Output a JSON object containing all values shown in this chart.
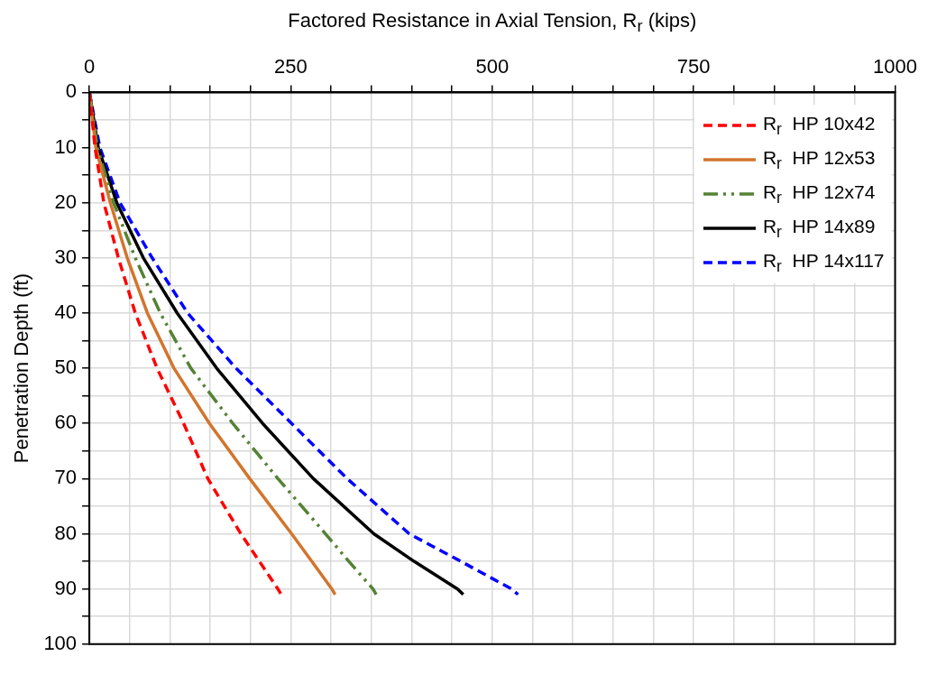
{
  "chart_data": {
    "type": "line",
    "xlabel": "Factored Resistance in Axial Tension, R$_{r}$ (kips)",
    "ylabel": "Penetration Depth (ft)",
    "xlim": [
      0,
      1000
    ],
    "xticks": [
      0,
      {
        "value": 50,
        "label": null
      },
      {
        "value": 100,
        "label": null
      },
      {
        "value": 150,
        "label": null
      },
      {
        "value": 200,
        "label": null
      },
      250,
      {
        "value": 300,
        "label": null
      },
      {
        "value": 350,
        "label": null
      },
      {
        "value": 400,
        "label": null
      },
      {
        "value": 450,
        "label": null
      },
      500,
      {
        "value": 550,
        "label": null
      },
      {
        "value": 600,
        "label": null
      },
      {
        "value": 650,
        "label": null
      },
      {
        "value": 700,
        "label": null
      },
      750,
      {
        "value": 800,
        "label": null
      },
      {
        "value": 850,
        "label": null
      },
      {
        "value": 900,
        "label": null
      },
      {
        "value": 950,
        "label": null
      },
      1000
    ],
    "ylim": [
      100,
      0
    ],
    "yticks": [
      0,
      {
        "value": 5,
        "label": null
      },
      10,
      {
        "value": 15,
        "label": null
      },
      20,
      {
        "value": 25,
        "label": null
      },
      30,
      {
        "value": 35,
        "label": null
      },
      40,
      {
        "value": 45,
        "label": null
      },
      50,
      {
        "value": 55,
        "label": null
      },
      60,
      {
        "value": 65,
        "label": null
      },
      70,
      {
        "value": 75,
        "label": null
      },
      80,
      {
        "value": 85,
        "label": null
      },
      90,
      {
        "value": 95,
        "label": null
      },
      100
    ],
    "grid": true,
    "legend": "top right",
    "marker": "none",
    "series": [
      {
        "name": "R$_{r}$  HP 10x42",
        "color": "#ff0000",
        "line_style": "dashed",
        "x": [
          0,
          7,
          18,
          36,
          57,
          84,
          117,
          147,
          188,
          211,
          234,
          238
        ],
        "values": [
          0,
          10,
          20,
          30,
          40,
          50,
          60,
          70,
          80,
          85,
          90,
          91
        ]
      },
      {
        "name": "R$_{r}$  HP 12x53",
        "color": "#d2752d",
        "line_style": "solid",
        "x": [
          0,
          8,
          26,
          47,
          72,
          105,
          149,
          199,
          251,
          276,
          301,
          305
        ],
        "values": [
          0,
          10,
          20,
          30,
          40,
          50,
          60,
          70,
          80,
          85,
          90,
          91
        ]
      },
      {
        "name": "R$_{r}$  HP 12x74",
        "color": "#548235",
        "line_style": "dashdot",
        "x": [
          0,
          10,
          30,
          57,
          88,
          126,
          178,
          234,
          293,
          322,
          352,
          356
        ],
        "values": [
          0,
          10,
          20,
          30,
          40,
          50,
          60,
          70,
          80,
          85,
          90,
          91
        ]
      },
      {
        "name": "R$_{r}$  HP 14x89",
        "color": "#000000",
        "line_style": "solid",
        "x": [
          0,
          11,
          34,
          67,
          109,
          158,
          215,
          278,
          353,
          403,
          457,
          464
        ],
        "values": [
          0,
          10,
          20,
          30,
          40,
          50,
          60,
          70,
          80,
          85,
          90,
          91
        ]
      },
      {
        "name": "R$_{r}$  HP 14x117",
        "color": "#0000ff",
        "line_style": "dashed",
        "x": [
          0,
          13,
          38,
          78,
          122,
          182,
          251,
          320,
          397,
          461,
          524,
          532
        ],
        "values": [
          0,
          10,
          20,
          30,
          40,
          50,
          60,
          70,
          80,
          85,
          90,
          91
        ]
      }
    ]
  }
}
